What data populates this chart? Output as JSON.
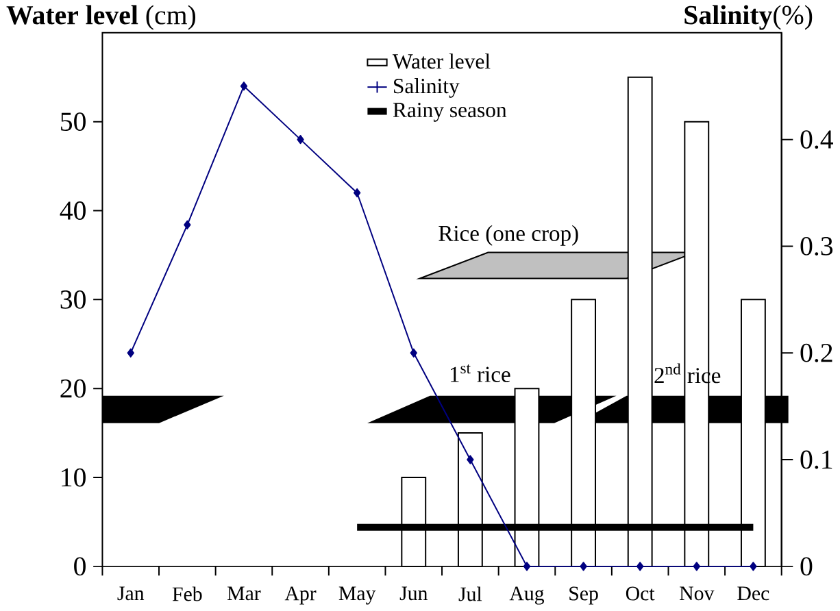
{
  "chart_data": {
    "type": "bar",
    "ylabel": "**Water level** (cm)",
    "y2label": "**Salinity**(%)",
    "categories": [
      "Jan",
      "Feb",
      "Mar",
      "Apr",
      "May",
      "Jun",
      "Jul",
      "Aug",
      "Sep",
      "Oct",
      "Nov",
      "Dec"
    ],
    "series": [
      {
        "name": "Water level",
        "color": "#000000",
        "values": [
          null,
          null,
          null,
          null,
          null,
          10,
          15,
          20,
          30,
          55,
          50,
          30
        ]
      },
      {
        "name": "Salinity",
        "type": "line",
        "axis": "y2",
        "color": "#000080",
        "values": [
          0.2,
          0.32,
          0.45,
          0.4,
          0.35,
          0.2,
          0.1,
          0,
          0,
          0,
          0,
          0
        ]
      },
      {
        "name": "Rainy season",
        "type": "line",
        "marker": "none",
        "color": "#000000",
        "values": [
          null,
          null,
          null,
          null,
          4.4,
          4.4,
          4.4,
          4.4,
          4.4,
          4.4,
          4.4,
          4.4
        ]
      }
    ],
    "ylim": [
      0,
      60
    ],
    "yticks": [
      0,
      10,
      20,
      30,
      40,
      50
    ],
    "y2lim": [
      0,
      0.5
    ],
    "y2ticks": [
      0,
      0.1,
      0.2,
      0.3,
      0.4
    ],
    "annotations": [
      "Rice (one crop)",
      "1$^{st}$ rice",
      "2$^{nd}$ rice"
    ],
    "marker": "diamond",
    "grid": false,
    "legend": "top"
  }
}
